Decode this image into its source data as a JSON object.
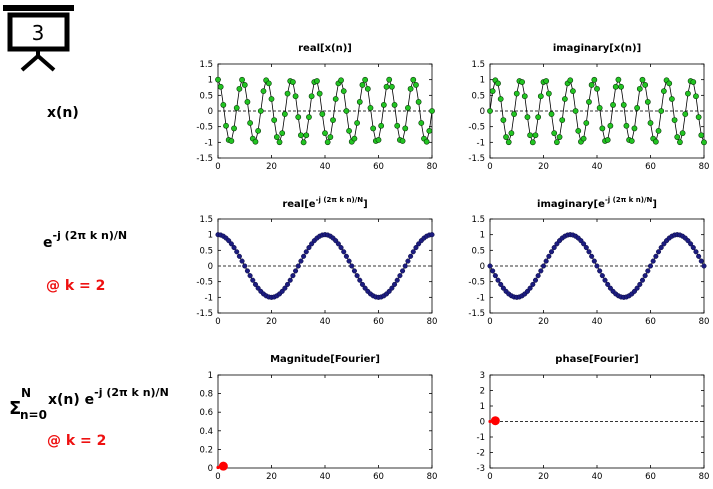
{
  "slide_number": "3",
  "row_labels": {
    "xn": "x(n)",
    "kernel_base": "e",
    "kernel_exp": "-j (2π k n)/N",
    "kernel_k": "@ k = 2",
    "sum_sigma": "Σ",
    "sum_top": "N",
    "sum_bottom": "n=0",
    "sum_term": "x(n) e",
    "sum_exp": "-j (2π k n)/N",
    "sum_k": "@ k = 2"
  },
  "colors": {
    "green_marker": "#22c422",
    "navy_marker": "#1c1c80",
    "red_marker": "#ff0000",
    "red_text": "#ee1111"
  },
  "chart_data": [
    {
      "id": "real_xn",
      "type": "line",
      "title_main": "real[x(n)]",
      "title_sup": "",
      "title_tail": "",
      "formula": "cos(2*pi*7*n/64)",
      "n_points": 81,
      "marker": "green",
      "xlim": [
        0,
        80
      ],
      "ylim": [
        -1.5,
        1.5
      ],
      "xticks": [
        "0",
        "20",
        "40",
        "60",
        "80"
      ],
      "yticks": [
        "1.5",
        "1",
        "0.5",
        "0",
        "-0.5",
        "-1",
        "-1.5"
      ]
    },
    {
      "id": "imag_xn",
      "type": "line",
      "title_main": "imaginary[x(n)]",
      "title_sup": "",
      "title_tail": "",
      "formula": "sin(2*pi*7*n/64)",
      "n_points": 81,
      "marker": "green",
      "xlim": [
        0,
        80
      ],
      "ylim": [
        -1.5,
        1.5
      ],
      "xticks": [
        "0",
        "20",
        "40",
        "60",
        "80"
      ],
      "yticks": [
        "1.5",
        "1",
        "0.5",
        "0",
        "-0.5",
        "-1",
        "-1.5"
      ]
    },
    {
      "id": "real_kernel",
      "type": "line",
      "title_main": "real[e",
      "title_sup": "-j (2π k n)/N",
      "title_tail": "]",
      "formula": "cos(2*pi*2*n/80)",
      "n_points": 81,
      "marker": "navy",
      "xlim": [
        0,
        80
      ],
      "ylim": [
        -1.5,
        1.5
      ],
      "xticks": [
        "0",
        "20",
        "40",
        "60",
        "80"
      ],
      "yticks": [
        "1.5",
        "1",
        "0.5",
        "0",
        "-0.5",
        "-1",
        "-1.5"
      ]
    },
    {
      "id": "imag_kernel",
      "type": "line",
      "title_main": "imaginary[e",
      "title_sup": "-j (2π k n)/N",
      "title_tail": "]",
      "formula": "-sin(2*pi*2*n/80)",
      "n_points": 81,
      "marker": "navy",
      "xlim": [
        0,
        80
      ],
      "ylim": [
        -1.5,
        1.5
      ],
      "xticks": [
        "0",
        "20",
        "40",
        "60",
        "80"
      ],
      "yticks": [
        "1.5",
        "1",
        "0.5",
        "0",
        "-0.5",
        "-1",
        "-1.5"
      ]
    },
    {
      "id": "mag_fourier",
      "type": "line",
      "title_main": "Magnitude[Fourier]",
      "title_sup": "",
      "title_tail": "",
      "marker": "red",
      "xlim": [
        0,
        80
      ],
      "ylim": [
        0,
        1
      ],
      "xticks": [
        "0",
        "20",
        "40",
        "60",
        "80"
      ],
      "yticks": [
        "1",
        "0.8",
        "0.6",
        "0.4",
        "0.2",
        "0"
      ],
      "points_x": [
        0,
        1,
        2
      ],
      "points_y": [
        0.005,
        0.01,
        0.02
      ]
    },
    {
      "id": "phase_fourier",
      "type": "line",
      "title_main": "phase[Fourier]",
      "title_sup": "",
      "title_tail": "",
      "marker": "red",
      "xlim": [
        0,
        80
      ],
      "ylim": [
        -3,
        3
      ],
      "xticks": [
        "0",
        "20",
        "40",
        "60",
        "80"
      ],
      "yticks": [
        "3",
        "2",
        "1",
        "0",
        "-1",
        "-2",
        "-3"
      ],
      "points_x": [
        0,
        1,
        2
      ],
      "points_y": [
        0,
        0,
        0.05
      ]
    }
  ]
}
